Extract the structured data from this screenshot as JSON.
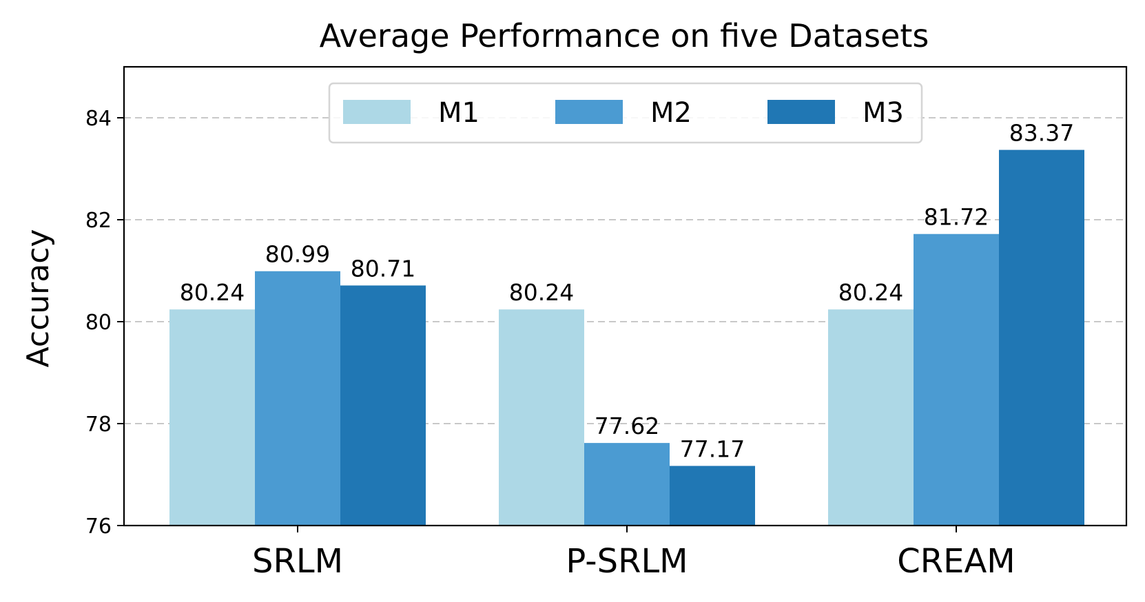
{
  "chart_data": {
    "type": "bar",
    "title": "Average Performance on five Datasets",
    "xlabel": "",
    "ylabel": "Accuracy",
    "ylim": [
      76,
      85
    ],
    "yticks": [
      76,
      78,
      80,
      82,
      84
    ],
    "grid": true,
    "legend_position": "top-center",
    "categories": [
      "SRLM",
      "P-SRLM",
      "CREAM"
    ],
    "series": [
      {
        "name": "M1",
        "color": "#add8e6",
        "values": [
          80.24,
          80.24,
          80.24
        ],
        "labels": [
          "80.24",
          "80.24",
          "80.24"
        ]
      },
      {
        "name": "M2",
        "color": "#4b9bd2",
        "values": [
          80.99,
          77.62,
          81.72
        ],
        "labels": [
          "80.99",
          "77.62",
          "81.72"
        ]
      },
      {
        "name": "M3",
        "color": "#2077b4",
        "values": [
          80.71,
          77.17,
          83.37
        ],
        "labels": [
          "80.71",
          "77.17",
          "83.37"
        ]
      }
    ]
  }
}
